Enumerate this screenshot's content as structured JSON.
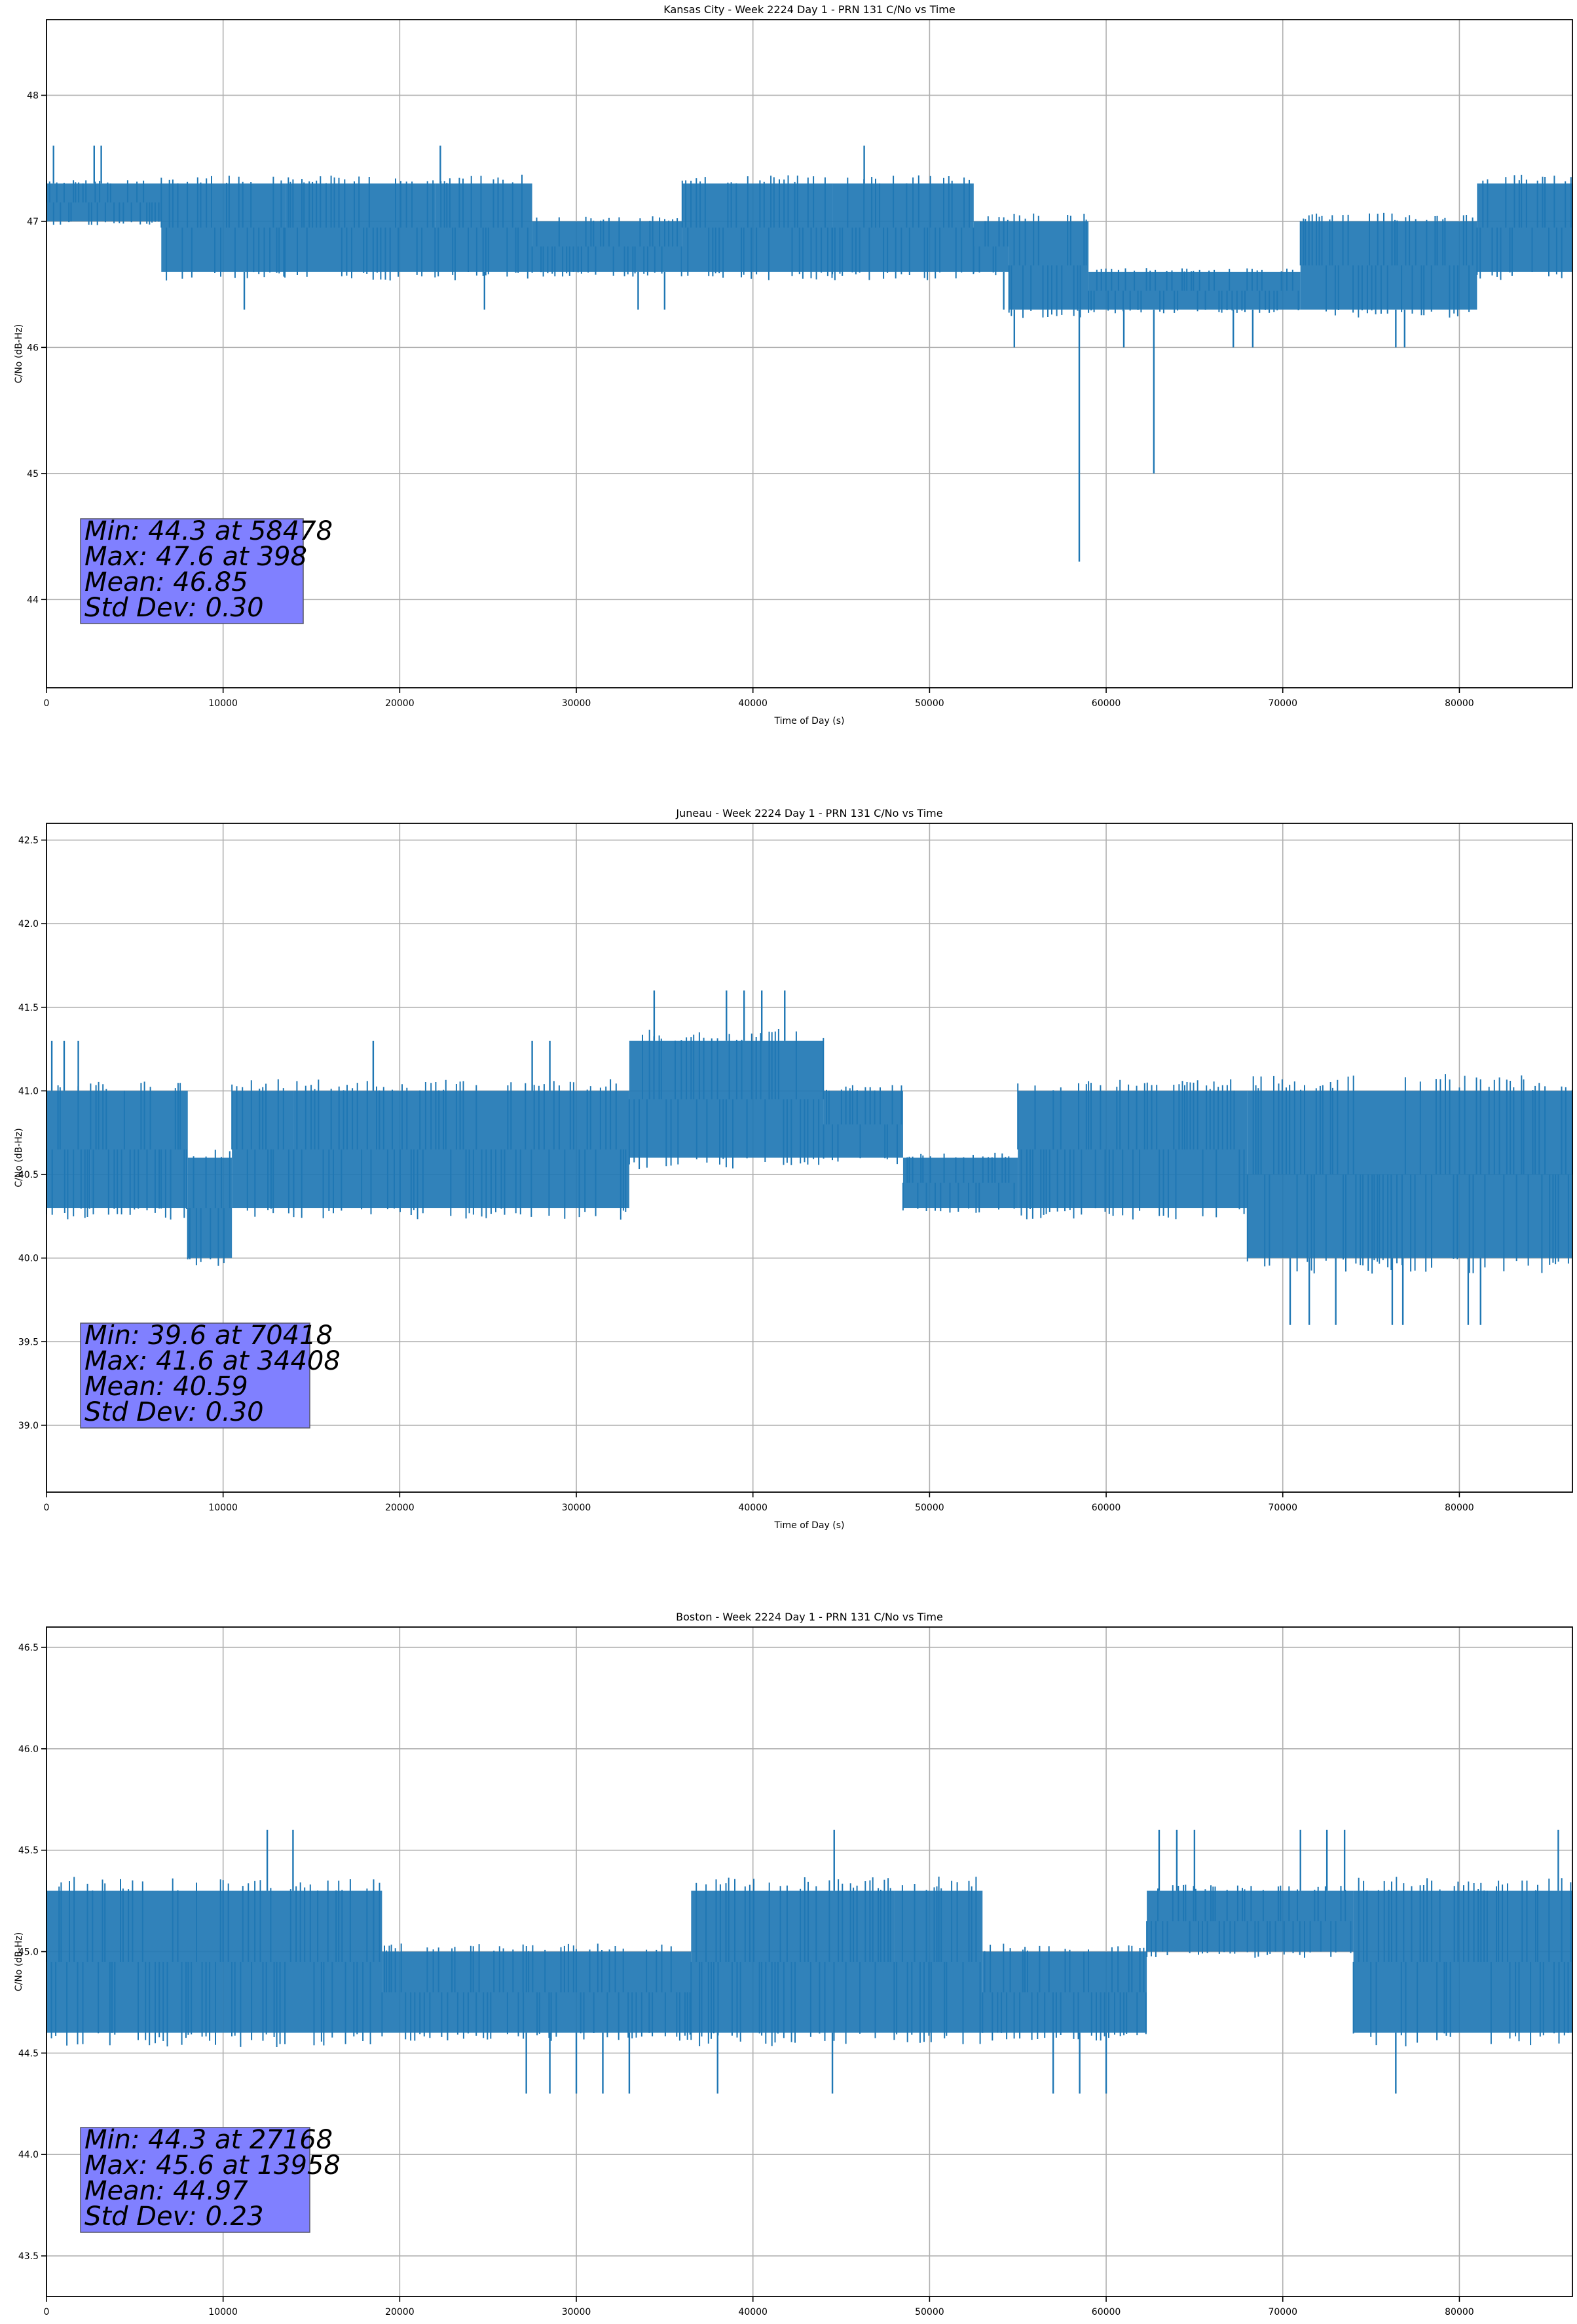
{
  "chart_data": [
    {
      "type": "line",
      "title": "Kansas City - Week 2224 Day 1 - PRN 131 C/No vs Time",
      "xlabel": "Time of Day (s)",
      "ylabel": "C/No (dB-Hz)",
      "xlim": [
        0,
        86400
      ],
      "ylim": [
        43.3,
        48.6
      ],
      "xticks": [
        0,
        10000,
        20000,
        30000,
        40000,
        50000,
        60000,
        70000,
        80000
      ],
      "yticks": [
        44,
        45,
        46,
        47,
        48
      ],
      "ytick_decimals": 0,
      "grid": true,
      "series": [
        {
          "name": "C/No",
          "color": "#1f77b4",
          "segments": [
            {
              "x_start": 0,
              "x_end": 6500,
              "low": 47.0,
              "high": 47.3
            },
            {
              "x_start": 6500,
              "x_end": 13500,
              "low": 46.6,
              "high": 47.3
            },
            {
              "x_start": 13500,
              "x_end": 22000,
              "low": 46.6,
              "high": 47.3
            },
            {
              "x_start": 22000,
              "x_end": 27500,
              "low": 46.6,
              "high": 47.3
            },
            {
              "x_start": 27500,
              "x_end": 36000,
              "low": 46.6,
              "high": 47.0
            },
            {
              "x_start": 36000,
              "x_end": 44500,
              "low": 46.6,
              "high": 47.3
            },
            {
              "x_start": 44500,
              "x_end": 52500,
              "low": 46.6,
              "high": 47.3
            },
            {
              "x_start": 52500,
              "x_end": 54500,
              "low": 46.6,
              "high": 47.0
            },
            {
              "x_start": 54500,
              "x_end": 59000,
              "low": 46.3,
              "high": 47.0
            },
            {
              "x_start": 59000,
              "x_end": 71000,
              "low": 46.3,
              "high": 46.6
            },
            {
              "x_start": 71000,
              "x_end": 81000,
              "low": 46.3,
              "high": 47.0
            },
            {
              "x_start": 81000,
              "x_end": 86400,
              "low": 46.6,
              "high": 47.3
            }
          ],
          "spikes": [
            {
              "x": 398,
              "value": 47.6
            },
            {
              "x": 2700,
              "value": 47.6
            },
            {
              "x": 3100,
              "value": 47.6
            },
            {
              "x": 22300,
              "value": 47.6
            },
            {
              "x": 46300,
              "value": 47.6
            },
            {
              "x": 11200,
              "value": 46.3
            },
            {
              "x": 24800,
              "value": 46.3
            },
            {
              "x": 33500,
              "value": 46.3
            },
            {
              "x": 35000,
              "value": 46.3
            },
            {
              "x": 54200,
              "value": 46.3
            },
            {
              "x": 54800,
              "value": 46.0
            },
            {
              "x": 58478,
              "value": 44.3
            },
            {
              "x": 62700,
              "value": 45.0
            },
            {
              "x": 61000,
              "value": 46.0
            },
            {
              "x": 67200,
              "value": 46.0
            },
            {
              "x": 68300,
              "value": 46.0
            },
            {
              "x": 76400,
              "value": 46.0
            },
            {
              "x": 76900,
              "value": 46.0
            }
          ]
        }
      ],
      "annotation": [
        "Min: 44.3 at 58478",
        "Max: 47.6 at 398",
        "Mean: 46.85",
        "Std Dev: 0.30"
      ]
    },
    {
      "type": "line",
      "title": "Juneau - Week 2224 Day 1 - PRN 131 C/No vs Time",
      "xlabel": "Time of Day (s)",
      "ylabel": "C/No (dB-Hz)",
      "xlim": [
        0,
        86400
      ],
      "ylim": [
        38.6,
        42.6
      ],
      "xticks": [
        0,
        10000,
        20000,
        30000,
        40000,
        50000,
        60000,
        70000,
        80000
      ],
      "yticks": [
        39.0,
        39.5,
        40.0,
        40.5,
        41.0,
        41.5,
        42.0,
        42.5
      ],
      "ytick_decimals": 1,
      "grid": true,
      "series": [
        {
          "name": "C/No",
          "color": "#1f77b4",
          "segments": [
            {
              "x_start": 0,
              "x_end": 2500,
              "low": 40.3,
              "high": 41.0
            },
            {
              "x_start": 2500,
              "x_end": 8000,
              "low": 40.3,
              "high": 41.0
            },
            {
              "x_start": 8000,
              "x_end": 10500,
              "low": 40.0,
              "high": 40.6
            },
            {
              "x_start": 10500,
              "x_end": 14000,
              "low": 40.3,
              "high": 41.0
            },
            {
              "x_start": 14000,
              "x_end": 33000,
              "low": 40.3,
              "high": 41.0
            },
            {
              "x_start": 33000,
              "x_end": 44000,
              "low": 40.6,
              "high": 41.3
            },
            {
              "x_start": 44000,
              "x_end": 48500,
              "low": 40.6,
              "high": 41.0
            },
            {
              "x_start": 48500,
              "x_end": 55000,
              "low": 40.3,
              "high": 40.6
            },
            {
              "x_start": 55000,
              "x_end": 68000,
              "low": 40.3,
              "high": 41.0
            },
            {
              "x_start": 68000,
              "x_end": 80000,
              "low": 40.0,
              "high": 41.0
            },
            {
              "x_start": 80000,
              "x_end": 86400,
              "low": 40.0,
              "high": 41.0
            }
          ],
          "spikes": [
            {
              "x": 300,
              "value": 41.3
            },
            {
              "x": 1000,
              "value": 41.3
            },
            {
              "x": 1800,
              "value": 41.3
            },
            {
              "x": 18500,
              "value": 41.3
            },
            {
              "x": 27500,
              "value": 41.3
            },
            {
              "x": 28500,
              "value": 41.3
            },
            {
              "x": 34408,
              "value": 41.6
            },
            {
              "x": 38500,
              "value": 41.6
            },
            {
              "x": 39500,
              "value": 41.6
            },
            {
              "x": 40500,
              "value": 41.6
            },
            {
              "x": 41800,
              "value": 41.6
            },
            {
              "x": 70418,
              "value": 39.6
            },
            {
              "x": 71500,
              "value": 39.6
            },
            {
              "x": 73000,
              "value": 39.6
            },
            {
              "x": 76200,
              "value": 39.6
            },
            {
              "x": 76800,
              "value": 39.6
            },
            {
              "x": 80500,
              "value": 39.6
            },
            {
              "x": 81200,
              "value": 39.6
            }
          ]
        }
      ],
      "annotation": [
        "Min: 39.6 at 70418",
        "Max: 41.6 at 34408",
        "Mean: 40.59",
        "Std Dev: 0.30"
      ]
    },
    {
      "type": "line",
      "title": "Boston - Week 2224 Day 1 - PRN 131 C/No vs Time",
      "xlabel": "Time of Day (s)",
      "ylabel": "C/No (dB-Hz)",
      "xlim": [
        0,
        86400
      ],
      "ylim": [
        43.3,
        46.6
      ],
      "xticks": [
        0,
        10000,
        20000,
        30000,
        40000,
        50000,
        60000,
        70000,
        80000
      ],
      "yticks": [
        43.5,
        44.0,
        44.5,
        45.0,
        45.5,
        46.0,
        46.5
      ],
      "ytick_decimals": 1,
      "grid": true,
      "series": [
        {
          "name": "C/No",
          "color": "#1f77b4",
          "segments": [
            {
              "x_start": 0,
              "x_end": 10000,
              "low": 44.6,
              "high": 45.3
            },
            {
              "x_start": 10000,
              "x_end": 19000,
              "low": 44.6,
              "high": 45.3
            },
            {
              "x_start": 19000,
              "x_end": 27000,
              "low": 44.6,
              "high": 45.0
            },
            {
              "x_start": 27000,
              "x_end": 36500,
              "low": 44.6,
              "high": 45.0
            },
            {
              "x_start": 36500,
              "x_end": 48000,
              "low": 44.6,
              "high": 45.3
            },
            {
              "x_start": 48000,
              "x_end": 53000,
              "low": 44.6,
              "high": 45.3
            },
            {
              "x_start": 53000,
              "x_end": 62300,
              "low": 44.6,
              "high": 45.0
            },
            {
              "x_start": 62300,
              "x_end": 74000,
              "low": 45.0,
              "high": 45.3
            },
            {
              "x_start": 74000,
              "x_end": 86400,
              "low": 44.6,
              "high": 45.3
            }
          ],
          "spikes": [
            {
              "x": 13958,
              "value": 45.6
            },
            {
              "x": 12500,
              "value": 45.6
            },
            {
              "x": 44600,
              "value": 45.6
            },
            {
              "x": 63000,
              "value": 45.6
            },
            {
              "x": 64000,
              "value": 45.6
            },
            {
              "x": 65000,
              "value": 45.6
            },
            {
              "x": 71000,
              "value": 45.6
            },
            {
              "x": 72500,
              "value": 45.6
            },
            {
              "x": 73500,
              "value": 45.6
            },
            {
              "x": 85600,
              "value": 45.6
            },
            {
              "x": 27168,
              "value": 44.3
            },
            {
              "x": 28500,
              "value": 44.3
            },
            {
              "x": 30000,
              "value": 44.3
            },
            {
              "x": 31500,
              "value": 44.3
            },
            {
              "x": 33000,
              "value": 44.3
            },
            {
              "x": 38000,
              "value": 44.3
            },
            {
              "x": 44500,
              "value": 44.3
            },
            {
              "x": 57000,
              "value": 44.3
            },
            {
              "x": 58500,
              "value": 44.3
            },
            {
              "x": 60000,
              "value": 44.3
            },
            {
              "x": 76400,
              "value": 44.3
            }
          ]
        }
      ],
      "annotation": [
        "Min: 44.3 at 27168",
        "Max: 45.6 at 13958",
        "Mean: 44.97",
        "Std Dev: 0.23"
      ]
    }
  ]
}
